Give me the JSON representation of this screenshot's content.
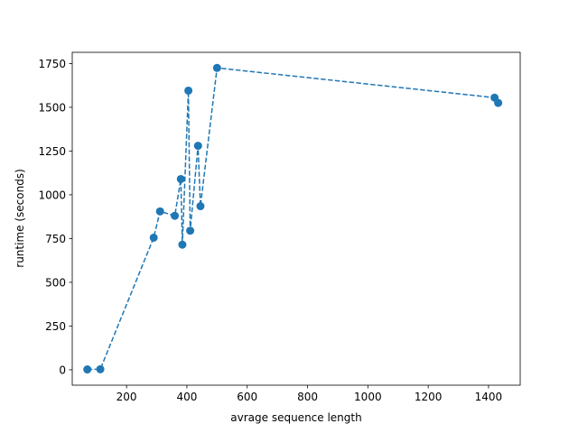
{
  "chart_data": {
    "type": "line",
    "xlabel": "avrage sequence length",
    "ylabel": "runtime (seconds)",
    "xlim": [
      20,
      1505
    ],
    "ylim": [
      -88,
      1814
    ],
    "xticks": [
      200,
      400,
      600,
      800,
      1000,
      1200,
      1400
    ],
    "yticks": [
      0,
      250,
      500,
      750,
      1000,
      1250,
      1500,
      1750
    ],
    "grid": false,
    "line_style": "dashed",
    "marker": "circle",
    "color": "#1f77b4",
    "series": [
      {
        "x": [
          70,
          113,
          290,
          311,
          360,
          380,
          385,
          405,
          411,
          437,
          445,
          500,
          1420,
          1432
        ],
        "y": [
          2,
          3,
          755,
          905,
          880,
          1090,
          715,
          1595,
          795,
          1280,
          935,
          1725,
          1555,
          1525
        ]
      }
    ]
  }
}
